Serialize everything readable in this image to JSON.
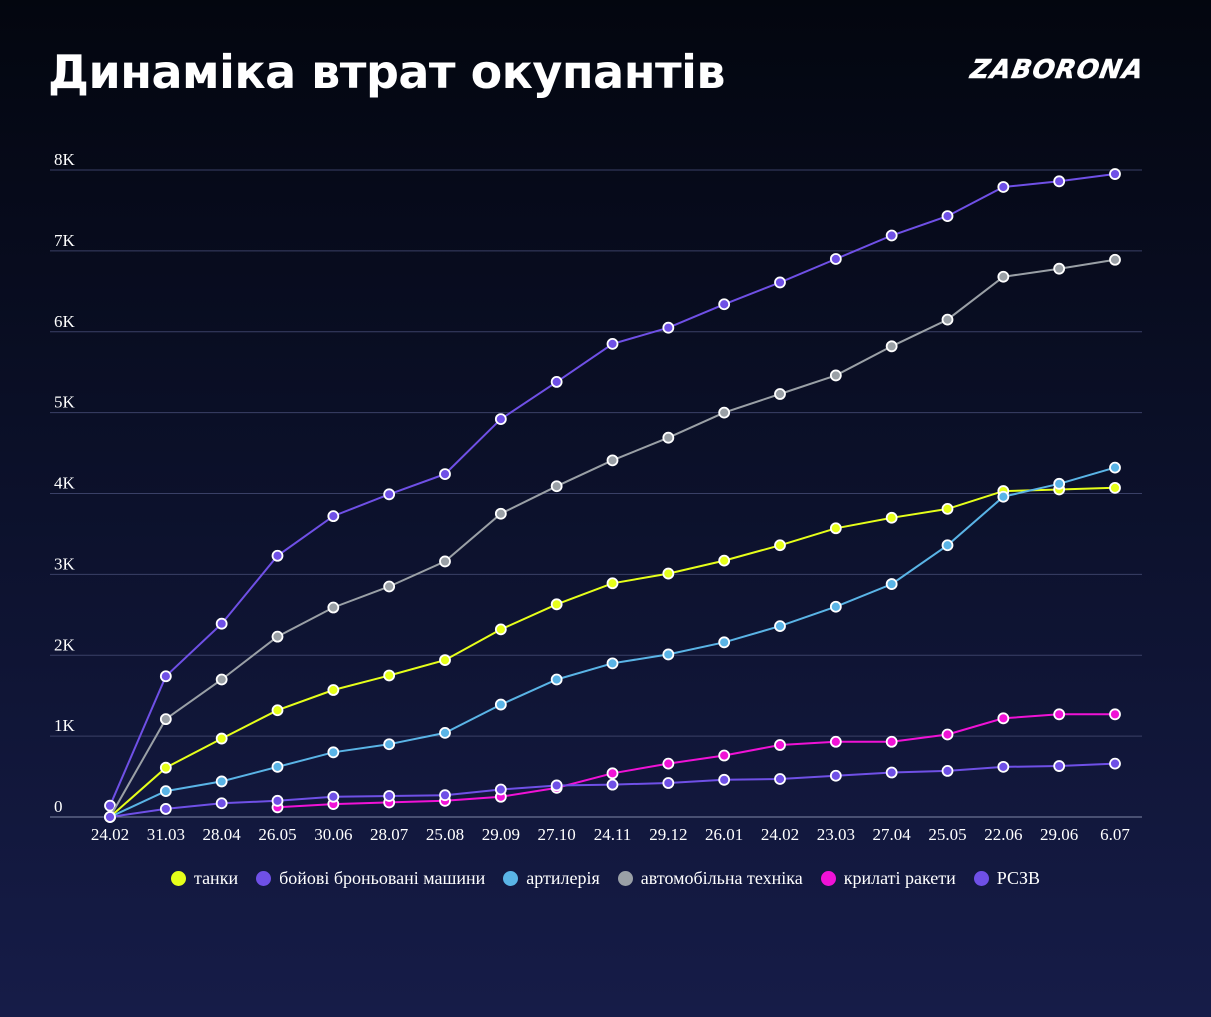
{
  "header": {
    "title": "Динаміка втрат окупантів",
    "brand": "ZABORONA"
  },
  "chart_data": {
    "type": "line",
    "title": "Динаміка втрат окупантів",
    "xlabel": "",
    "ylabel": "",
    "ylim": [
      0,
      8000
    ],
    "y_ticks": [
      "0",
      "1K",
      "2K",
      "3K",
      "4K",
      "5K",
      "6K",
      "7K",
      "8K"
    ],
    "grid": true,
    "legend_position": "bottom",
    "categories": [
      "24.02",
      "31.03",
      "28.04",
      "26.05",
      "30.06",
      "28.07",
      "25.08",
      "29.09",
      "27.10",
      "24.11",
      "29.12",
      "26.01",
      "24.02",
      "23.03",
      "27.04",
      "25.05",
      "22.06",
      "29.06",
      "6.07"
    ],
    "series": [
      {
        "name": "танки",
        "color": "#e6ff1a",
        "values": [
          0,
          610,
          970,
          1320,
          1570,
          1750,
          1940,
          2320,
          2630,
          2890,
          3010,
          3170,
          3360,
          3570,
          3700,
          3810,
          4030,
          4050,
          4070
        ]
      },
      {
        "name": "бойові броньовані машини",
        "color": "#6f50e6",
        "values": [
          140,
          1740,
          2390,
          3230,
          3720,
          3990,
          4240,
          4920,
          5380,
          5850,
          6050,
          6340,
          6610,
          6900,
          7190,
          7430,
          7790,
          7860,
          7950
        ]
      },
      {
        "name": "артилерія",
        "color": "#5ab4e6",
        "values": [
          0,
          320,
          440,
          620,
          800,
          900,
          1040,
          1390,
          1700,
          1900,
          2010,
          2160,
          2360,
          2600,
          2880,
          3360,
          3960,
          4120,
          4320
        ]
      },
      {
        "name": "автомобільна техніка",
        "color": "#9aa0a6",
        "values": [
          0,
          1210,
          1700,
          2230,
          2590,
          2850,
          3160,
          3750,
          4090,
          4410,
          4690,
          5000,
          5230,
          5460,
          5820,
          6150,
          6680,
          6780,
          6890
        ]
      },
      {
        "name": "крилаті ракети",
        "color": "#f012d6",
        "values": [
          null,
          null,
          null,
          120,
          160,
          180,
          200,
          250,
          360,
          540,
          660,
          760,
          890,
          930,
          930,
          1020,
          1220,
          1270,
          1270
        ]
      },
      {
        "name": "РСЗВ",
        "color": "#6f50e6",
        "values": [
          0,
          100,
          170,
          200,
          250,
          260,
          270,
          340,
          390,
          400,
          420,
          460,
          470,
          510,
          550,
          570,
          620,
          630,
          660
        ]
      }
    ]
  }
}
